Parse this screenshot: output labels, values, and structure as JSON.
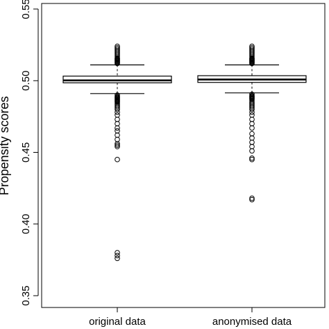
{
  "chart_data": {
    "type": "boxplot",
    "title": "",
    "xlabel": "",
    "ylabel": "Propensity scores",
    "ylim": [
      0.35,
      0.55
    ],
    "yticks": [
      0.35,
      0.4,
      0.45,
      0.5,
      0.55
    ],
    "ytick_labels": [
      "0.35",
      "0.40",
      "0.45",
      "0.50",
      "0.55"
    ],
    "categories": [
      "original data",
      "anonymised data"
    ],
    "grid": false,
    "legend": "none",
    "boxes": [
      {
        "category": "original data",
        "whisker_low": 0.491,
        "q1": 0.4985,
        "median": 0.5002,
        "q3": 0.5032,
        "whisker_high": 0.511,
        "outliers_high": [
          0.512,
          0.5125,
          0.513,
          0.5135,
          0.514,
          0.5145,
          0.515,
          0.5155,
          0.516,
          0.517,
          0.518,
          0.519,
          0.52,
          0.521,
          0.522,
          0.523,
          0.524
        ],
        "outliers_low": [
          0.49,
          0.489,
          0.4885,
          0.488,
          0.4875,
          0.487,
          0.4865,
          0.486,
          0.4855,
          0.485,
          0.484,
          0.483,
          0.482,
          0.481,
          0.48,
          0.478,
          0.476,
          0.473,
          0.47,
          0.467,
          0.465,
          0.462,
          0.459,
          0.456,
          0.455,
          0.454,
          0.445,
          0.38,
          0.378,
          0.376
        ]
      },
      {
        "category": "anonymised data",
        "whisker_low": 0.4915,
        "q1": 0.4988,
        "median": 0.5008,
        "q3": 0.5035,
        "whisker_high": 0.511,
        "outliers_high": [
          0.512,
          0.5125,
          0.513,
          0.5135,
          0.514,
          0.5145,
          0.515,
          0.5155,
          0.516,
          0.517,
          0.518,
          0.519,
          0.52,
          0.521,
          0.522,
          0.523,
          0.524
        ],
        "outliers_low": [
          0.4905,
          0.4895,
          0.489,
          0.4885,
          0.488,
          0.4875,
          0.487,
          0.486,
          0.485,
          0.484,
          0.483,
          0.482,
          0.481,
          0.48,
          0.478,
          0.476,
          0.473,
          0.47,
          0.467,
          0.463,
          0.46,
          0.457,
          0.454,
          0.451,
          0.446,
          0.445,
          0.418,
          0.417
        ]
      }
    ]
  },
  "colors": {
    "stroke": "#000000",
    "box_fill": "#ffffff",
    "background": "#ffffff"
  }
}
